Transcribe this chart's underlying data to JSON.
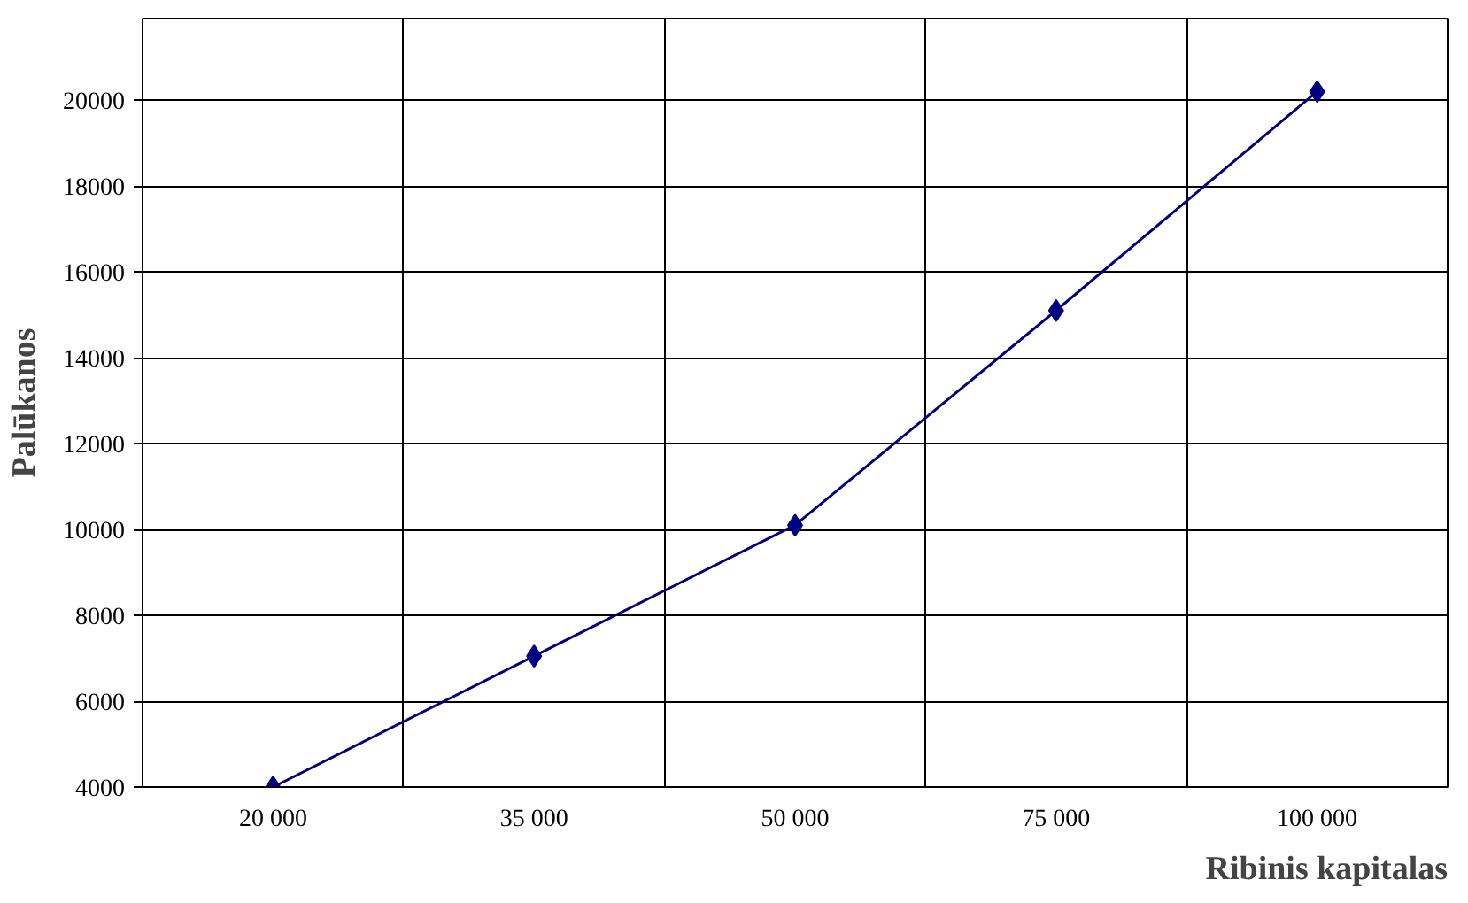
{
  "chart_data": {
    "type": "line",
    "xlabel": "Ribinis kapitalas",
    "ylabel": "Palūkanos",
    "categories": [
      "20 000",
      "35 000",
      "50 000",
      "75 000",
      "100 000"
    ],
    "series": [
      {
        "color": "#000080",
        "values": [
          4000,
          7050,
          10100,
          15100,
          20200
        ]
      }
    ],
    "ylim": [
      4000,
      21900
    ],
    "yticks": [
      4000,
      6000,
      8000,
      10000,
      12000,
      14000,
      16000,
      18000,
      20000
    ],
    "grid": true,
    "marker": "diamond",
    "line_style": "solid"
  }
}
